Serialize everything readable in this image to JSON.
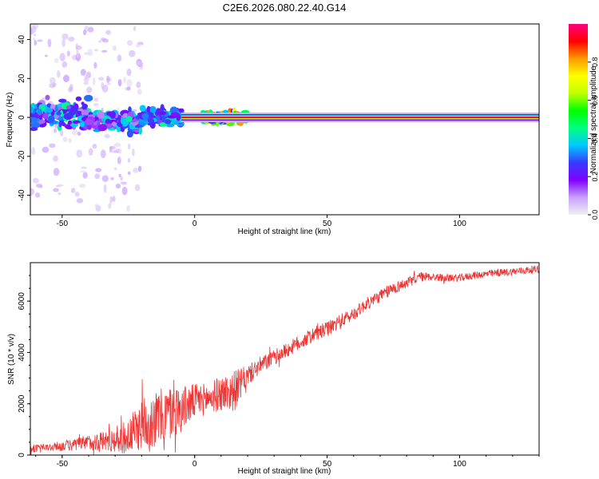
{
  "title": "C2E6.2026.080.22.40.G14",
  "chart_data": [
    {
      "type": "heatmap",
      "title": "C2E6.2026.080.22.40.G14",
      "xlabel": "Height of straight line (km)",
      "ylabel": "Frequency (Hz)",
      "xlim": [
        -62,
        130
      ],
      "ylim": [
        -50,
        48
      ],
      "xticks": [
        -50,
        0,
        50,
        100
      ],
      "xtick_labels": [
        "-50",
        "0",
        "50",
        "100"
      ],
      "yticks": [
        -40,
        -20,
        0,
        20,
        40
      ],
      "ytick_labels": [
        "-40",
        "-20",
        "0",
        "20",
        "40"
      ],
      "carrier_band": {
        "freq_hz": 0,
        "start_km": -5,
        "end_km": 130,
        "amplitude": 0.95
      },
      "scatter_clusters": [
        {
          "x_range": [
            -62,
            -40
          ],
          "freq_center": 2,
          "freq_spread": 5,
          "amplitude_range": [
            0.1,
            0.45
          ]
        },
        {
          "x_range": [
            -40,
            -20
          ],
          "freq_center": -2,
          "freq_spread": 4,
          "amplitude_range": [
            0.1,
            0.45
          ]
        },
        {
          "x_range": [
            -20,
            -5
          ],
          "freq_center": 0,
          "freq_spread": 3,
          "amplitude_range": [
            0.15,
            0.45
          ]
        },
        {
          "x_range": [
            3,
            20
          ],
          "freq_center": 0,
          "freq_spread": 2,
          "amplitude_range": [
            0.15,
            0.85
          ]
        }
      ],
      "colorbar": {
        "label": "Normalized spectral amplitude",
        "range": [
          0,
          1
        ],
        "ticks": [
          0.0,
          0.2,
          0.4,
          0.6,
          0.8
        ],
        "tick_labels": [
          "0.0",
          "0.2",
          "0.4",
          "0.6",
          "0.8"
        ],
        "colors": [
          "#f0f0f0",
          "#c8a2ff",
          "#8000ff",
          "#3a3aff",
          "#00c8ff",
          "#00ff80",
          "#00ff00",
          "#c0ff00",
          "#ffff00",
          "#ff9900",
          "#ff0000",
          "#ff0080"
        ]
      }
    },
    {
      "type": "line",
      "xlabel": "Height of straight line (km)",
      "ylabel": "SNR (10 * v/v)",
      "xlim": [
        -62,
        130
      ],
      "ylim": [
        0,
        7500
      ],
      "xticks": [
        -50,
        0,
        50,
        100
      ],
      "xtick_labels": [
        "-50",
        "0",
        "50",
        "100"
      ],
      "yticks": [
        0,
        2000,
        4000,
        6000
      ],
      "ytick_labels": [
        "0",
        "2000",
        "4000",
        "6000"
      ],
      "color": "#ee3333",
      "series": [
        {
          "name": "SNR",
          "x": [
            -62,
            -55,
            -50,
            -45,
            -40,
            -35,
            -30,
            -25,
            -20,
            -15,
            -10,
            -5,
            0,
            5,
            10,
            15,
            20,
            25,
            30,
            35,
            40,
            45,
            50,
            55,
            60,
            65,
            70,
            75,
            80,
            85,
            90,
            95,
            100,
            105,
            110,
            115,
            120,
            125,
            130
          ],
          "values": [
            250,
            300,
            350,
            400,
            500,
            550,
            600,
            700,
            1200,
            1400,
            1600,
            1800,
            2100,
            2200,
            2400,
            2500,
            3100,
            3500,
            3800,
            4100,
            4400,
            4700,
            4900,
            5200,
            5500,
            5900,
            6200,
            6500,
            6700,
            6950,
            6950,
            6900,
            6900,
            7000,
            7050,
            7100,
            7150,
            7200,
            7250
          ],
          "noise_envelope": [
            150,
            150,
            200,
            250,
            300,
            400,
            500,
            700,
            1000,
            1100,
            1100,
            900,
            700,
            600,
            700,
            800,
            400,
            350,
            300,
            300,
            300,
            300,
            300,
            300,
            250,
            250,
            250,
            250,
            200,
            200,
            150,
            150,
            150,
            150,
            150,
            150,
            150,
            150,
            150
          ]
        }
      ]
    }
  ]
}
